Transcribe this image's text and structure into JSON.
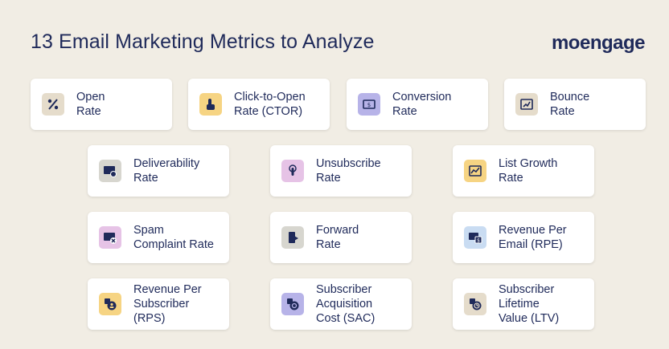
{
  "header": {
    "title": "13 Email Marketing Metrics to Analyze",
    "logo": "moengage"
  },
  "metrics": [
    {
      "label": "Open\nRate",
      "icon": "percent-icon",
      "color": "#e5dccb"
    },
    {
      "label": "Click-to-Open\nRate (CTOR)",
      "icon": "click-icon",
      "color": "#f6d483"
    },
    {
      "label": "Conversion\nRate",
      "icon": "conversion-icon",
      "color": "#b7b3e8"
    },
    {
      "label": "Bounce\nRate",
      "icon": "bounce-icon",
      "color": "#e5dccb"
    },
    {
      "label": "Deliverability\nRate",
      "icon": "deliverability-icon",
      "color": "#d7d6cf"
    },
    {
      "label": "Unsubscribe\nRate",
      "icon": "unsubscribe-icon",
      "color": "#e6c3e6"
    },
    {
      "label": "List Growth\nRate",
      "icon": "growth-chart-icon",
      "color": "#f6d483"
    },
    {
      "label": "Spam\nComplaint Rate",
      "icon": "spam-icon",
      "color": "#e6c3e6"
    },
    {
      "label": "Forward\nRate",
      "icon": "forward-icon",
      "color": "#d7d6cf"
    },
    {
      "label": "Revenue Per\nEmail (RPE)",
      "icon": "revenue-email-icon",
      "color": "#c9dcf2"
    },
    {
      "label": "Revenue Per\nSubscriber\n(RPS)",
      "icon": "revenue-subscriber-icon",
      "color": "#f6d483"
    },
    {
      "label": "Subscriber\nAcquisition\nCost (SAC)",
      "icon": "acquisition-cost-icon",
      "color": "#b7b3e8"
    },
    {
      "label": "Subscriber\nLifetime\nValue (LTV)",
      "icon": "lifetime-value-icon",
      "color": "#e5dccb"
    }
  ]
}
